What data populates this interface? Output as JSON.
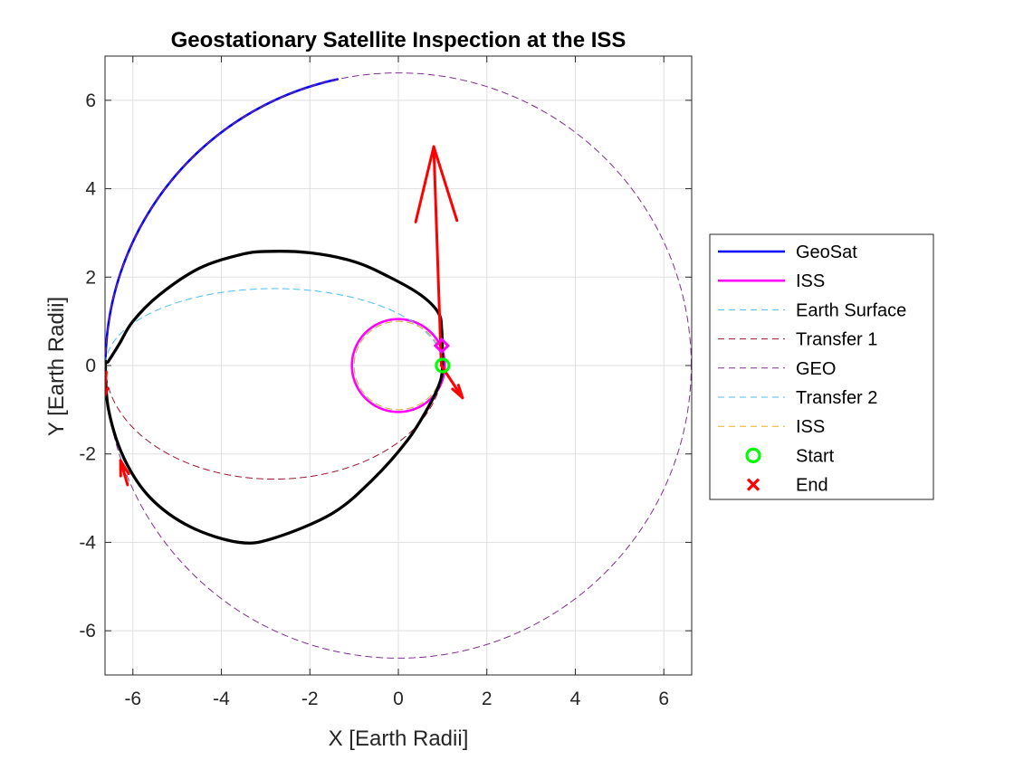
{
  "chart_data": {
    "type": "line",
    "title": "Geostationary Satellite Inspection at the ISS",
    "xlabel": "X [Earth Radii]",
    "ylabel": "Y [Earth Radii]",
    "xlim": [
      -6.63,
      6.63
    ],
    "ylim": [
      -7.0,
      7.0
    ],
    "xticks": [
      -6,
      -4,
      -2,
      0,
      2,
      4,
      6
    ],
    "yticks": [
      -6,
      -4,
      -2,
      0,
      2,
      4,
      6
    ],
    "grid": true,
    "legend_position": "outside-right",
    "series": [
      {
        "name": "GeoSat",
        "kind": "arc",
        "color": "#0000ff",
        "style": "solid",
        "center": [
          0,
          0
        ],
        "radius": 6.62,
        "theta_start_deg": 102,
        "theta_end_deg": 180
      },
      {
        "name": "ISS",
        "kind": "circle",
        "color": "#ff00ff",
        "style": "solid",
        "center": [
          0,
          0
        ],
        "radius": 1.05
      },
      {
        "name": "Earth Surface",
        "kind": "circle",
        "color": "#4dbeee",
        "style": "dashed",
        "center": [
          0,
          0
        ],
        "radius": 1.0
      },
      {
        "name": "Transfer 1",
        "kind": "ellipse",
        "color": "#a2142f",
        "style": "dashed",
        "center": [
          -2.81,
          0
        ],
        "a": 3.81,
        "b": 2.57,
        "t_start_deg": 180,
        "t_end_deg": 360
      },
      {
        "name": "GEO",
        "kind": "circle",
        "color": "#7e2f8e",
        "style": "dashed",
        "center": [
          0,
          0
        ],
        "radius": 6.62
      },
      {
        "name": "Transfer 2",
        "kind": "ellipse",
        "color": "#4dbeee",
        "style": "dashed",
        "center": [
          -2.81,
          0
        ],
        "a": 3.81,
        "b": 1.74,
        "t_start_deg": 0,
        "t_end_deg": 180
      },
      {
        "name": "ISS",
        "kind": "circle",
        "color": "#edb120",
        "style": "dashed",
        "center": [
          0,
          0
        ],
        "radius": 1.0
      },
      {
        "name": "",
        "kind": "path",
        "color": "#000000",
        "style": "solid",
        "x": [
          1.0,
          0.98,
          0.9,
          0.5,
          -0.2,
          -1.0,
          -2.0,
          -3.0,
          -3.6,
          -4.5,
          -5.4,
          -6.0,
          -6.3,
          -6.55,
          -6.62,
          -6.55,
          -6.2,
          -5.6,
          -4.7,
          -3.6,
          -2.8,
          -1.5,
          -0.6,
          0.2,
          0.7,
          0.95,
          1.0
        ],
        "y": [
          0.0,
          0.8,
          1.2,
          1.6,
          2.0,
          2.35,
          2.55,
          2.58,
          2.5,
          2.2,
          1.6,
          1.0,
          0.5,
          0.1,
          0.0,
          -1.0,
          -2.1,
          -3.0,
          -3.65,
          -4.0,
          -3.9,
          -3.35,
          -2.6,
          -1.7,
          -0.9,
          -0.35,
          0.0
        ]
      },
      {
        "name": "",
        "kind": "vector",
        "color": "#ff0000",
        "style": "solid",
        "from": [
          0.97,
          0.0
        ],
        "to": [
          0.8,
          4.95
        ],
        "head_size": 1.75
      },
      {
        "name": "",
        "kind": "vector",
        "color": "#ff0000",
        "style": "solid",
        "from": [
          0.97,
          0.0
        ],
        "to": [
          1.45,
          -0.73
        ],
        "head_size": 0.3
      },
      {
        "name": "",
        "kind": "vector",
        "color": "#ff0000",
        "style": "solid",
        "from": [
          -6.12,
          -2.7
        ],
        "to": [
          -6.28,
          -2.15
        ],
        "head_size": 0.35
      },
      {
        "name": "",
        "kind": "vector",
        "color": "#ff0000",
        "style": "solid",
        "from": [
          -6.6,
          -0.15
        ],
        "to": [
          -6.66,
          -0.75
        ],
        "head_size": 0.25
      }
    ],
    "markers": [
      {
        "name": "",
        "shape": "diamond",
        "color": "#ff00ff",
        "x": 0.98,
        "y": 0.45
      },
      {
        "name": "Start",
        "shape": "circle",
        "color": "#00ff00",
        "x": 1.0,
        "y": 0.0
      },
      {
        "name": "End",
        "shape": "x",
        "color": "#ff0000"
      }
    ],
    "legend": [
      {
        "label": "GeoSat",
        "color": "#0000ff",
        "style": "solid"
      },
      {
        "label": "ISS",
        "color": "#ff00ff",
        "style": "solid"
      },
      {
        "label": "Earth Surface",
        "color": "#4dbeee",
        "style": "dashed"
      },
      {
        "label": "Transfer 1",
        "color": "#a2142f",
        "style": "dashed"
      },
      {
        "label": "GEO",
        "color": "#7e2f8e",
        "style": "dashed"
      },
      {
        "label": "Transfer 2",
        "color": "#4dbeee",
        "style": "dashed"
      },
      {
        "label": "ISS",
        "color": "#edb120",
        "style": "dashed"
      },
      {
        "label": "Start",
        "color": "#00ff00",
        "style": "marker-circle"
      },
      {
        "label": "End",
        "color": "#ff0000",
        "style": "marker-x"
      }
    ]
  }
}
